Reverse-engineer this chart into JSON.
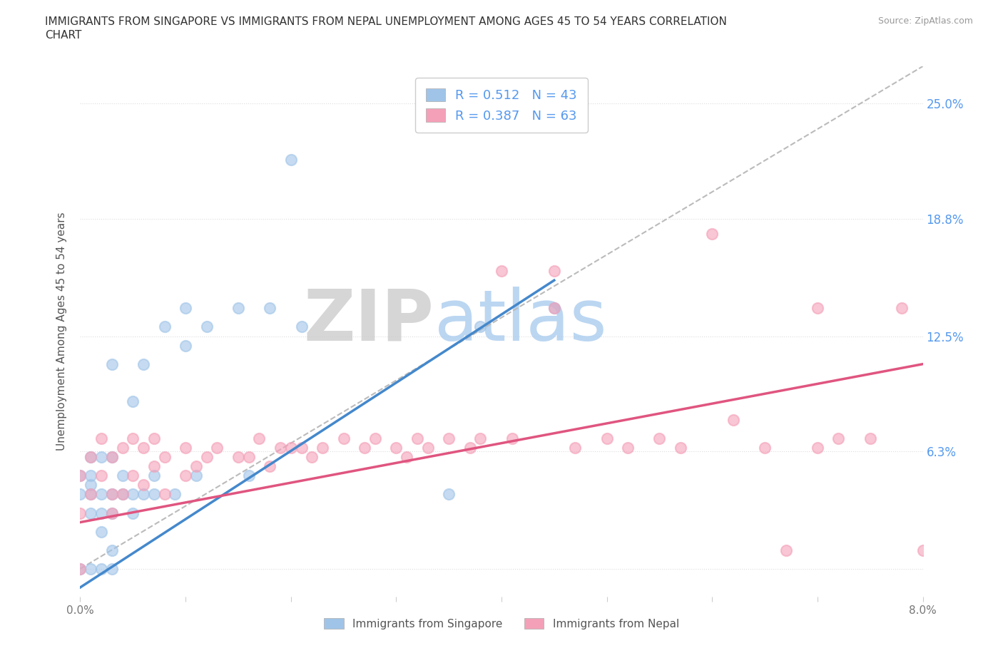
{
  "title_line1": "IMMIGRANTS FROM SINGAPORE VS IMMIGRANTS FROM NEPAL UNEMPLOYMENT AMONG AGES 45 TO 54 YEARS CORRELATION",
  "title_line2": "CHART",
  "source": "Source: ZipAtlas.com",
  "ylabel": "Unemployment Among Ages 45 to 54 years",
  "xlim": [
    0.0,
    0.08
  ],
  "ylim": [
    -0.015,
    0.27
  ],
  "xtick_labels": [
    "0.0%",
    "",
    "",
    "",
    "",
    "",
    "",
    "",
    "8.0%"
  ],
  "xtick_vals": [
    0.0,
    0.01,
    0.02,
    0.03,
    0.04,
    0.05,
    0.06,
    0.07,
    0.08
  ],
  "ytick_positions": [
    0.0,
    0.063,
    0.125,
    0.188,
    0.25
  ],
  "right_ytick_positions": [
    0.063,
    0.125,
    0.188,
    0.25
  ],
  "right_ytick_labels": [
    "6.3%",
    "12.5%",
    "18.8%",
    "25.0%"
  ],
  "singapore_R": 0.512,
  "singapore_N": 43,
  "nepal_R": 0.387,
  "nepal_N": 63,
  "singapore_color": "#a0c4e8",
  "nepal_color": "#f4a0b8",
  "singapore_line_color": "#4488cc",
  "nepal_line_color": "#e05580",
  "diag_color": "#bbbbbb",
  "right_label_color": "#5599ee",
  "singapore_x": [
    0.0,
    0.0,
    0.0,
    0.001,
    0.001,
    0.001,
    0.001,
    0.001,
    0.001,
    0.002,
    0.002,
    0.002,
    0.002,
    0.002,
    0.003,
    0.003,
    0.003,
    0.003,
    0.003,
    0.003,
    0.004,
    0.004,
    0.005,
    0.005,
    0.005,
    0.006,
    0.006,
    0.007,
    0.007,
    0.008,
    0.009,
    0.01,
    0.01,
    0.011,
    0.012,
    0.015,
    0.016,
    0.018,
    0.02,
    0.021,
    0.035,
    0.038,
    0.045
  ],
  "singapore_y": [
    0.0,
    0.04,
    0.05,
    0.0,
    0.03,
    0.04,
    0.045,
    0.05,
    0.06,
    0.0,
    0.02,
    0.03,
    0.04,
    0.06,
    0.0,
    0.01,
    0.03,
    0.04,
    0.06,
    0.11,
    0.04,
    0.05,
    0.03,
    0.04,
    0.09,
    0.04,
    0.11,
    0.04,
    0.05,
    0.13,
    0.04,
    0.12,
    0.14,
    0.05,
    0.13,
    0.14,
    0.05,
    0.14,
    0.22,
    0.13,
    0.04,
    0.13,
    0.14
  ],
  "nepal_x": [
    0.0,
    0.0,
    0.0,
    0.001,
    0.001,
    0.002,
    0.002,
    0.003,
    0.003,
    0.003,
    0.004,
    0.004,
    0.005,
    0.005,
    0.006,
    0.006,
    0.007,
    0.007,
    0.008,
    0.008,
    0.01,
    0.01,
    0.011,
    0.012,
    0.013,
    0.015,
    0.016,
    0.017,
    0.018,
    0.019,
    0.02,
    0.021,
    0.022,
    0.023,
    0.025,
    0.027,
    0.028,
    0.03,
    0.031,
    0.032,
    0.033,
    0.035,
    0.037,
    0.038,
    0.04,
    0.041,
    0.045,
    0.047,
    0.05,
    0.052,
    0.055,
    0.057,
    0.06,
    0.062,
    0.065,
    0.067,
    0.07,
    0.072,
    0.075,
    0.078,
    0.08,
    0.045,
    0.07
  ],
  "nepal_y": [
    0.0,
    0.03,
    0.05,
    0.04,
    0.06,
    0.05,
    0.07,
    0.03,
    0.04,
    0.06,
    0.04,
    0.065,
    0.05,
    0.07,
    0.045,
    0.065,
    0.055,
    0.07,
    0.04,
    0.06,
    0.05,
    0.065,
    0.055,
    0.06,
    0.065,
    0.06,
    0.06,
    0.07,
    0.055,
    0.065,
    0.065,
    0.065,
    0.06,
    0.065,
    0.07,
    0.065,
    0.07,
    0.065,
    0.06,
    0.07,
    0.065,
    0.07,
    0.065,
    0.07,
    0.16,
    0.07,
    0.14,
    0.065,
    0.07,
    0.065,
    0.07,
    0.065,
    0.18,
    0.08,
    0.065,
    0.01,
    0.065,
    0.07,
    0.07,
    0.14,
    0.01,
    0.16,
    0.14
  ],
  "singapore_trend_x": [
    0.0,
    0.045
  ],
  "singapore_trend_y": [
    -0.01,
    0.155
  ],
  "nepal_trend_x": [
    0.0,
    0.08
  ],
  "nepal_trend_y": [
    0.025,
    0.11
  ],
  "diag_line_x": [
    0.0,
    0.08
  ],
  "diag_line_y": [
    0.0,
    0.27
  ],
  "watermark_zip": "ZIP",
  "watermark_atlas": "atlas",
  "watermark_color_zip": "#cccccc",
  "watermark_color_atlas": "#aaccee",
  "background_color": "#ffffff",
  "grid_color": "#dddddd",
  "title_color": "#333333",
  "axis_label_color": "#555555",
  "tick_label_color": "#777777"
}
